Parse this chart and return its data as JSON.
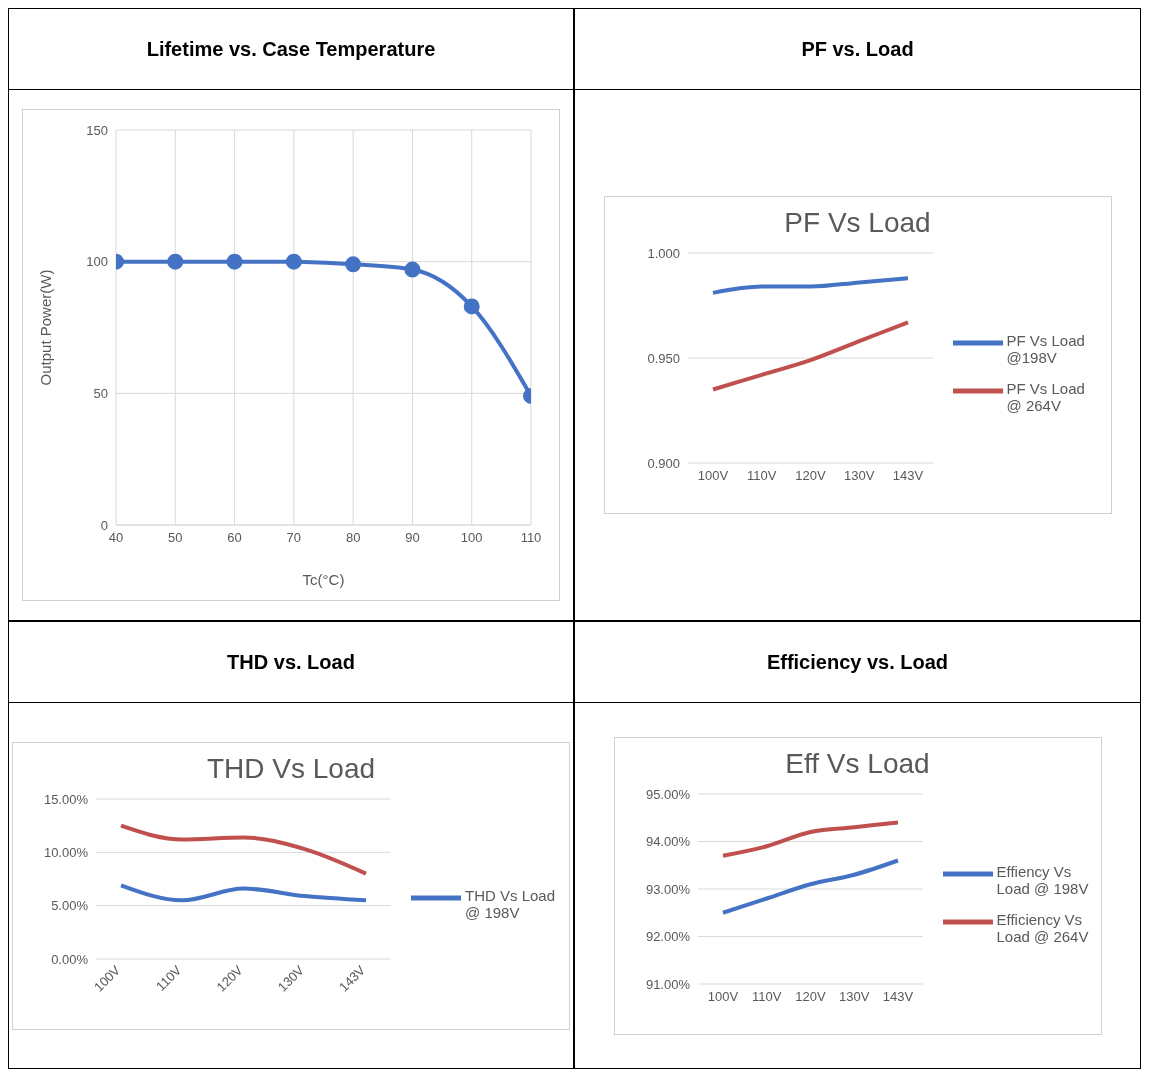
{
  "chart_data": [
    {
      "type": "line",
      "title": "Lifetime vs. Case Temperature",
      "xlabel": "Tc(°C)",
      "ylabel": "Output Power(W)",
      "x": [
        40,
        50,
        60,
        70,
        80,
        90,
        100,
        110
      ],
      "xlim": [
        40,
        110
      ],
      "xticks": [
        40,
        50,
        60,
        70,
        80,
        90,
        100,
        110
      ],
      "ylim": [
        0,
        150
      ],
      "yticks": [
        0,
        50,
        100,
        150
      ],
      "grid": true,
      "marker": "circle",
      "series": [
        {
          "color": "#4472c4",
          "values": [
            100,
            100,
            100,
            100,
            99,
            97,
            83,
            49
          ]
        }
      ]
    },
    {
      "type": "line",
      "title": "PF vs. Load",
      "subtitle": "PF Vs Load",
      "categories": [
        "100V",
        "110V",
        "120V",
        "130V",
        "143V"
      ],
      "ylim": [
        0.9,
        1.0
      ],
      "yticks": [
        {
          "value": 0.9,
          "label": "0.900"
        },
        {
          "value": 0.95,
          "label": "0.950"
        },
        {
          "value": 1.0,
          "label": "1.000"
        }
      ],
      "grid": "y",
      "legend": "right",
      "series": [
        {
          "name": "PF Vs Load @198V",
          "color": "#4472c4",
          "values": [
            0.981,
            0.984,
            0.984,
            0.986,
            0.988
          ]
        },
        {
          "name": "PF Vs Load @ 264V",
          "color": "#c0504d",
          "values": [
            0.935,
            0.942,
            0.949,
            0.958,
            0.967
          ]
        }
      ]
    },
    {
      "type": "line",
      "title": "THD vs.  Load",
      "subtitle": "THD Vs Load",
      "categories": [
        "100V",
        "110V",
        "120V",
        "130V",
        "143V"
      ],
      "ylim": [
        0,
        15
      ],
      "yticks": [
        {
          "value": 0,
          "label": "0.00%"
        },
        {
          "value": 5,
          "label": "5.00%"
        },
        {
          "value": 10,
          "label": "10.00%"
        },
        {
          "value": 15,
          "label": "15.00%"
        }
      ],
      "grid": "y",
      "legend": "right",
      "series": [
        {
          "name": "THD Vs Load @ 198V",
          "color": "#4472c4",
          "values": [
            6.9,
            5.5,
            6.6,
            5.9,
            5.5
          ]
        },
        {
          "color": "#c0504d",
          "values": [
            12.5,
            11.2,
            11.4,
            10.3,
            8.0
          ]
        }
      ]
    },
    {
      "type": "line",
      "title": "Efficiency vs.  Load",
      "subtitle": "Eff Vs Load",
      "categories": [
        "100V",
        "110V",
        "120V",
        "130V",
        "143V"
      ],
      "ylim": [
        91,
        95
      ],
      "yticks": [
        {
          "value": 91,
          "label": "91.00%"
        },
        {
          "value": 92,
          "label": "92.00%"
        },
        {
          "value": 93,
          "label": "93.00%"
        },
        {
          "value": 94,
          "label": "94.00%"
        },
        {
          "value": 95,
          "label": "95.00%"
        }
      ],
      "grid": "y",
      "legend": "right",
      "series": [
        {
          "name": "Effiency Vs Load @ 198V",
          "color": "#4472c4",
          "values": [
            92.5,
            92.8,
            93.1,
            93.3,
            93.6
          ]
        },
        {
          "name": "Efficiency Vs Load @ 264V",
          "color": "#c0504d",
          "values": [
            93.7,
            93.9,
            94.2,
            94.3,
            94.4
          ]
        }
      ]
    }
  ]
}
